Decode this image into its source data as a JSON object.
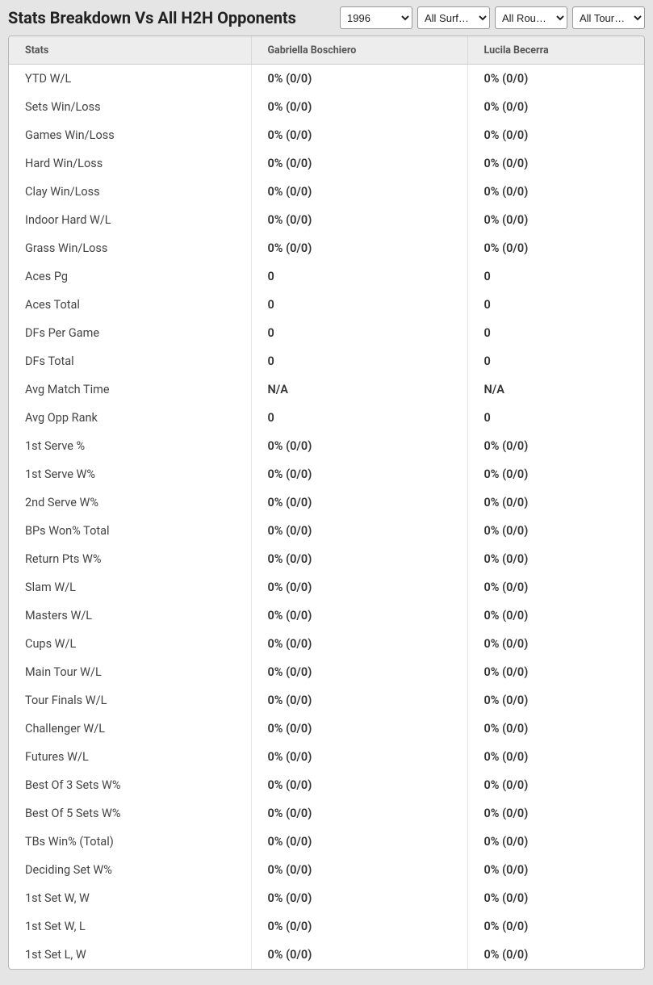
{
  "header": {
    "title": "Stats Breakdown Vs All H2H Opponents"
  },
  "filters": {
    "year": {
      "selected": "1996",
      "options": [
        "1996"
      ]
    },
    "surface": {
      "selected": "All Surf…",
      "options": [
        "All Surf…"
      ]
    },
    "round": {
      "selected": "All Rou…",
      "options": [
        "All Rou…"
      ]
    },
    "tour": {
      "selected": "All Tour…",
      "options": [
        "All Tour…"
      ]
    }
  },
  "table": {
    "columns": [
      "Stats",
      "Gabriella Boschiero",
      "Lucila Becerra"
    ],
    "rows": [
      [
        "YTD W/L",
        "0% (0/0)",
        "0% (0/0)"
      ],
      [
        "Sets Win/Loss",
        "0% (0/0)",
        "0% (0/0)"
      ],
      [
        "Games Win/Loss",
        "0% (0/0)",
        "0% (0/0)"
      ],
      [
        "Hard Win/Loss",
        "0% (0/0)",
        "0% (0/0)"
      ],
      [
        "Clay Win/Loss",
        "0% (0/0)",
        "0% (0/0)"
      ],
      [
        "Indoor Hard W/L",
        "0% (0/0)",
        "0% (0/0)"
      ],
      [
        "Grass Win/Loss",
        "0% (0/0)",
        "0% (0/0)"
      ],
      [
        "Aces Pg",
        "0",
        "0"
      ],
      [
        "Aces Total",
        "0",
        "0"
      ],
      [
        "DFs Per Game",
        "0",
        "0"
      ],
      [
        "DFs Total",
        "0",
        "0"
      ],
      [
        "Avg Match Time",
        "N/A",
        "N/A"
      ],
      [
        "Avg Opp Rank",
        "0",
        "0"
      ],
      [
        "1st Serve %",
        "0% (0/0)",
        "0% (0/0)"
      ],
      [
        "1st Serve W%",
        "0% (0/0)",
        "0% (0/0)"
      ],
      [
        "2nd Serve W%",
        "0% (0/0)",
        "0% (0/0)"
      ],
      [
        "BPs Won% Total",
        "0% (0/0)",
        "0% (0/0)"
      ],
      [
        "Return Pts W%",
        "0% (0/0)",
        "0% (0/0)"
      ],
      [
        "Slam W/L",
        "0% (0/0)",
        "0% (0/0)"
      ],
      [
        "Masters W/L",
        "0% (0/0)",
        "0% (0/0)"
      ],
      [
        "Cups W/L",
        "0% (0/0)",
        "0% (0/0)"
      ],
      [
        "Main Tour W/L",
        "0% (0/0)",
        "0% (0/0)"
      ],
      [
        "Tour Finals W/L",
        "0% (0/0)",
        "0% (0/0)"
      ],
      [
        "Challenger W/L",
        "0% (0/0)",
        "0% (0/0)"
      ],
      [
        "Futures W/L",
        "0% (0/0)",
        "0% (0/0)"
      ],
      [
        "Best Of 3 Sets W%",
        "0% (0/0)",
        "0% (0/0)"
      ],
      [
        "Best Of 5 Sets W%",
        "0% (0/0)",
        "0% (0/0)"
      ],
      [
        "TBs Win% (Total)",
        "0% (0/0)",
        "0% (0/0)"
      ],
      [
        "Deciding Set W%",
        "0% (0/0)",
        "0% (0/0)"
      ],
      [
        "1st Set W, W",
        "0% (0/0)",
        "0% (0/0)"
      ],
      [
        "1st Set W, L",
        "0% (0/0)",
        "0% (0/0)"
      ],
      [
        "1st Set L, W",
        "0% (0/0)",
        "0% (0/0)"
      ]
    ],
    "styles": {
      "header_bg": "#ededed",
      "header_text": "#555555",
      "row_text": "#3b3b3b",
      "value_weight": 600,
      "border_color": "#b8b8b8",
      "col_divider": "#e6e6e6",
      "background": "#ffffff"
    }
  },
  "page": {
    "background": "#e5e5e5"
  }
}
